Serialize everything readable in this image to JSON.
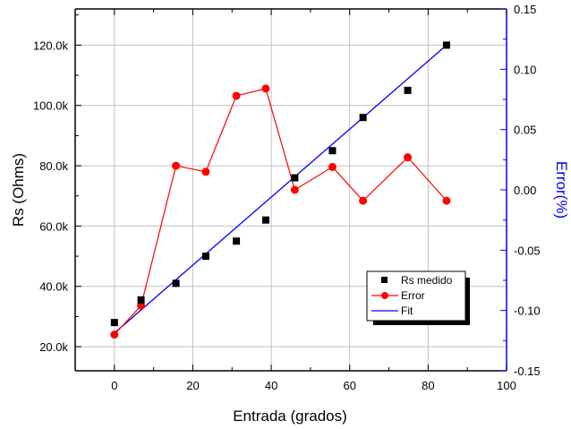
{
  "chart_data": {
    "type": "scatter",
    "xlabel": "Entrada (grados)",
    "ylabel_left": "Rs (Ohms)",
    "ylabel_right": "Error(%)",
    "xlim": [
      -10,
      100
    ],
    "ylim_left": [
      12000,
      132000
    ],
    "ylim_right": [
      -0.15,
      0.15
    ],
    "x_ticks": [
      "0",
      "20",
      "40",
      "60",
      "80",
      "100"
    ],
    "y_left_ticks": [
      "20.0k",
      "40.0k",
      "60.0k",
      "80.0k",
      "100.0k",
      "120.0k"
    ],
    "y_right_ticks": [
      "-0.15",
      "-0.10",
      "-0.05",
      "0.00",
      "0.05",
      "0.10",
      "0.15"
    ],
    "grid": true,
    "legend_position": "bottom-right",
    "colors": {
      "measured": "#000000",
      "error": "#ff0000",
      "fit": "#0000ff",
      "right_axis": "#0000ff",
      "grid": "#c0c0c0"
    },
    "series": [
      {
        "name": "Rs medido",
        "axis": "left",
        "style": "square-markers",
        "x": [
          0,
          6.8,
          15.7,
          23.3,
          31.1,
          38.6,
          46.0,
          55.6,
          63.4,
          74.8,
          84.7
        ],
        "y": [
          28000,
          35500,
          41000,
          50000,
          55000,
          62000,
          76000,
          85000,
          96000,
          105000,
          120000
        ]
      },
      {
        "name": "Error",
        "axis": "right",
        "style": "line-circle-markers",
        "x": [
          0,
          6.8,
          15.7,
          23.3,
          31.1,
          38.6,
          46.0,
          55.6,
          63.4,
          74.8,
          84.7
        ],
        "y": [
          -0.12,
          -0.096,
          0.02,
          0.015,
          0.078,
          0.084,
          0.0,
          0.019,
          -0.009,
          0.027,
          -0.009
        ]
      },
      {
        "name": "Fit",
        "axis": "left",
        "style": "line",
        "x": [
          0,
          84.7
        ],
        "y": [
          24500,
          120000
        ]
      }
    ]
  }
}
